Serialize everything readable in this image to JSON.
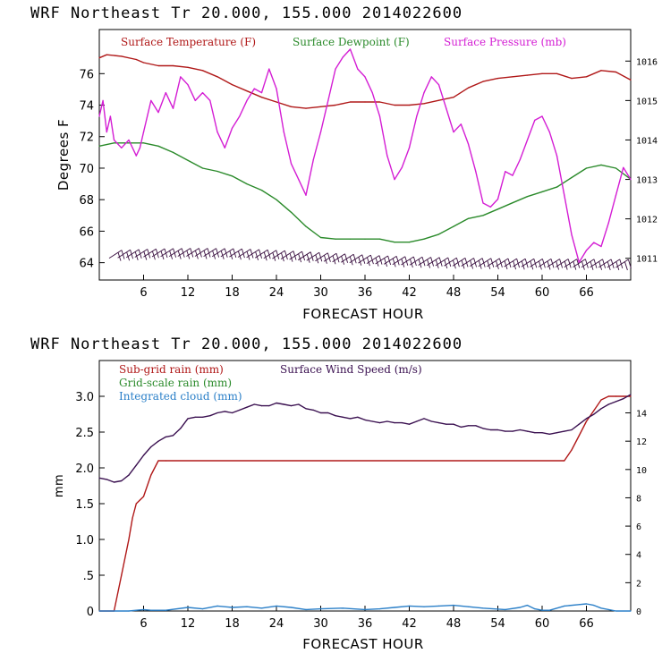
{
  "colors": {
    "temperature": "#b01818",
    "dewpoint": "#2a8a2a",
    "pressure": "#d41ed4",
    "wind_barbs": "#3a1040",
    "subgrid_rain": "#b01818",
    "gridscale_rain": "#2a8a2a",
    "cloud": "#2a7fc8",
    "wind_speed": "#3a1050"
  },
  "chart_data": [
    {
      "type": "line",
      "title": "WRF   Northeast Tr  20.000, 155.000  2014022600",
      "xlabel": "FORECAST HOUR",
      "ylabel": "Degrees F",
      "xlim": [
        0,
        72
      ],
      "ylim": [
        62.9,
        78.8
      ],
      "y2lim": [
        1010.45,
        1016.8
      ],
      "xticks": [
        6,
        12,
        18,
        24,
        30,
        36,
        42,
        48,
        54,
        60,
        66
      ],
      "yticks": [
        64,
        66,
        68,
        70,
        72,
        74,
        76
      ],
      "y2ticks": [
        1011,
        1012,
        1013,
        1014,
        1015,
        1016
      ],
      "legend": [
        "Surface Temperature (F)",
        "Surface Dewpoint (F)",
        "Surface Pressure (mb)"
      ],
      "series": [
        {
          "name": "Surface Temperature (F)",
          "axis": "left",
          "x": [
            0,
            1,
            3,
            5,
            6,
            8,
            10,
            12,
            14,
            16,
            18,
            20,
            22,
            24,
            26,
            28,
            30,
            32,
            34,
            36,
            38,
            40,
            42,
            44,
            46,
            48,
            50,
            52,
            54,
            56,
            58,
            60,
            62,
            64,
            66,
            68,
            70,
            72
          ],
          "values": [
            77.0,
            77.2,
            77.1,
            76.9,
            76.7,
            76.5,
            76.5,
            76.4,
            76.2,
            75.8,
            75.3,
            74.9,
            74.5,
            74.2,
            73.9,
            73.8,
            73.9,
            74.0,
            74.2,
            74.2,
            74.2,
            74.0,
            74.0,
            74.1,
            74.3,
            74.5,
            75.1,
            75.5,
            75.7,
            75.8,
            75.9,
            76.0,
            76.0,
            75.7,
            75.8,
            76.2,
            76.1,
            75.6
          ]
        },
        {
          "name": "Surface Dewpoint (F)",
          "axis": "left",
          "x": [
            0,
            2,
            4,
            6,
            8,
            10,
            12,
            14,
            16,
            18,
            20,
            22,
            24,
            26,
            28,
            30,
            32,
            34,
            36,
            38,
            40,
            42,
            44,
            46,
            48,
            50,
            52,
            54,
            56,
            58,
            60,
            62,
            64,
            66,
            68,
            70,
            72
          ],
          "values": [
            71.4,
            71.6,
            71.6,
            71.6,
            71.4,
            71.0,
            70.5,
            70.0,
            69.8,
            69.5,
            69.0,
            68.6,
            68.0,
            67.2,
            66.3,
            65.6,
            65.5,
            65.5,
            65.5,
            65.5,
            65.3,
            65.3,
            65.5,
            65.8,
            66.3,
            66.8,
            67.0,
            67.4,
            67.8,
            68.2,
            68.5,
            68.8,
            69.4,
            70.0,
            70.2,
            70.0,
            69.3
          ]
        },
        {
          "name": "Surface Pressure (mb)",
          "axis": "right",
          "x": [
            0,
            0.5,
            1,
            1.5,
            2,
            3,
            4,
            5,
            5.5,
            6,
            7,
            8,
            9,
            10,
            11,
            12,
            13,
            14,
            15,
            16,
            17,
            18,
            19,
            20,
            21,
            22,
            23,
            24,
            25,
            26,
            27,
            28,
            29,
            30,
            31,
            32,
            33,
            34,
            35,
            36,
            37,
            38,
            39,
            40,
            41,
            42,
            43,
            44,
            45,
            46,
            47,
            48,
            49,
            50,
            51,
            52,
            53,
            54,
            55,
            56,
            57,
            58,
            59,
            60,
            61,
            62,
            63,
            64,
            65,
            66,
            67,
            68,
            69,
            70,
            71,
            72
          ],
          "values": [
            1014.6,
            1015.0,
            1014.2,
            1014.6,
            1014.0,
            1013.8,
            1014.0,
            1013.6,
            1013.8,
            1014.2,
            1015.0,
            1014.7,
            1015.2,
            1014.8,
            1015.6,
            1015.4,
            1015.0,
            1015.2,
            1015.0,
            1014.2,
            1013.8,
            1014.3,
            1014.6,
            1015.0,
            1015.3,
            1015.2,
            1015.8,
            1015.3,
            1014.2,
            1013.4,
            1013.0,
            1012.6,
            1013.5,
            1014.2,
            1015.0,
            1015.8,
            1016.1,
            1016.3,
            1015.8,
            1015.6,
            1015.2,
            1014.6,
            1013.6,
            1013.0,
            1013.3,
            1013.8,
            1014.6,
            1015.2,
            1015.6,
            1015.4,
            1014.8,
            1014.2,
            1014.4,
            1013.9,
            1013.2,
            1012.4,
            1012.3,
            1012.5,
            1013.2,
            1013.1,
            1013.5,
            1014.0,
            1014.5,
            1014.6,
            1014.2,
            1013.6,
            1012.6,
            1011.6,
            1010.9,
            1011.2,
            1011.4,
            1011.3,
            1011.9,
            1012.6,
            1013.3,
            1013.0
          ]
        }
      ]
    },
    {
      "type": "line",
      "title": "WRF   Northeast Tr  20.000, 155.000  2014022600",
      "xlabel": "FORECAST HOUR",
      "ylabel": "mm",
      "xlim": [
        0,
        72
      ],
      "ylim": [
        0,
        3.5
      ],
      "y2lim": [
        0,
        17.7
      ],
      "xticks": [
        6,
        12,
        18,
        24,
        30,
        36,
        42,
        48,
        54,
        60,
        66
      ],
      "yticks": [
        0,
        0.5,
        1.0,
        1.5,
        2.0,
        2.5,
        3.0
      ],
      "ytick_labels": [
        "0",
        ".5",
        "1.0",
        "1.5",
        "2.0",
        "2.5",
        "3.0"
      ],
      "y2ticks": [
        0,
        2,
        4,
        6,
        8,
        10,
        12,
        14
      ],
      "legend": [
        "Sub-grid rain (mm)",
        "Surface Wind Speed (m/s)",
        "Grid-scale rain (mm)",
        "Integrated cloud (mm)"
      ],
      "series": [
        {
          "name": "Sub-grid rain (mm)",
          "axis": "left",
          "x": [
            0,
            2,
            3,
            4,
            4.5,
            5,
            5.5,
            6,
            7,
            8,
            9,
            63,
            64,
            65,
            66,
            67,
            68,
            69,
            70,
            71,
            72
          ],
          "values": [
            0,
            0,
            0.5,
            1.0,
            1.3,
            1.5,
            1.55,
            1.6,
            1.9,
            2.1,
            2.1,
            2.1,
            2.25,
            2.45,
            2.65,
            2.8,
            2.95,
            3.0,
            3.0,
            3.0,
            3.0
          ]
        },
        {
          "name": "Surface Wind Speed (m/s)",
          "axis": "right",
          "x": [
            0,
            1,
            2,
            3,
            4,
            5,
            6,
            7,
            8,
            9,
            10,
            11,
            12,
            13,
            14,
            15,
            16,
            17,
            18,
            19,
            20,
            21,
            22,
            23,
            24,
            25,
            26,
            27,
            28,
            29,
            30,
            31,
            32,
            33,
            34,
            35,
            36,
            37,
            38,
            39,
            40,
            41,
            42,
            43,
            44,
            45,
            46,
            47,
            48,
            49,
            50,
            51,
            52,
            53,
            54,
            55,
            56,
            57,
            58,
            59,
            60,
            61,
            62,
            63,
            64,
            65,
            66,
            67,
            68,
            69,
            70,
            71,
            72
          ],
          "values": [
            9.4,
            9.3,
            9.1,
            9.2,
            9.6,
            10.3,
            11.0,
            11.6,
            12.0,
            12.3,
            12.4,
            12.9,
            13.6,
            13.7,
            13.7,
            13.8,
            14.0,
            14.1,
            14.0,
            14.2,
            14.4,
            14.6,
            14.5,
            14.5,
            14.7,
            14.6,
            14.5,
            14.6,
            14.3,
            14.2,
            14.0,
            14.0,
            13.8,
            13.7,
            13.6,
            13.7,
            13.5,
            13.4,
            13.3,
            13.4,
            13.3,
            13.3,
            13.2,
            13.4,
            13.6,
            13.4,
            13.3,
            13.2,
            13.2,
            13.0,
            13.1,
            13.1,
            12.9,
            12.8,
            12.8,
            12.7,
            12.7,
            12.8,
            12.7,
            12.6,
            12.6,
            12.5,
            12.6,
            12.7,
            12.8,
            13.2,
            13.6,
            13.9,
            14.3,
            14.6,
            14.8,
            15.0,
            15.3
          ]
        },
        {
          "name": "Integrated cloud (mm)",
          "axis": "left",
          "x": [
            0,
            4,
            5,
            6,
            7,
            9,
            12,
            14,
            16,
            18,
            20,
            22,
            24,
            26,
            28,
            30,
            33,
            36,
            38,
            40,
            42,
            44,
            46,
            48,
            50,
            52,
            55,
            57,
            58,
            59,
            60,
            61,
            63,
            65,
            66,
            67,
            68,
            70,
            72
          ],
          "values": [
            0.0,
            0.0,
            0.01,
            0.02,
            0.01,
            0.01,
            0.05,
            0.03,
            0.07,
            0.05,
            0.06,
            0.04,
            0.07,
            0.05,
            0.02,
            0.03,
            0.04,
            0.02,
            0.03,
            0.05,
            0.07,
            0.06,
            0.07,
            0.08,
            0.06,
            0.04,
            0.02,
            0.05,
            0.08,
            0.03,
            0.01,
            0.01,
            0.07,
            0.09,
            0.1,
            0.08,
            0.04,
            0.0,
            0.0
          ]
        }
      ]
    }
  ]
}
